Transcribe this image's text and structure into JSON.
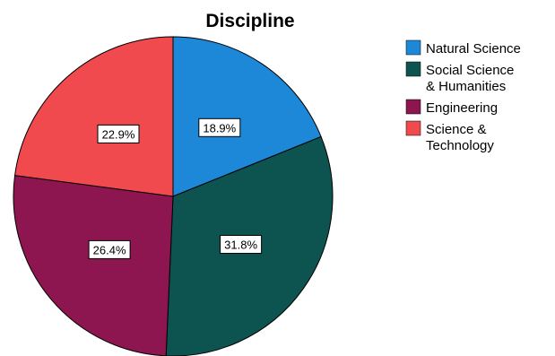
{
  "chart_data": {
    "type": "pie",
    "title": "Discipline",
    "categories": [
      [
        "Natural Science"
      ],
      [
        "Social Science",
        "& Humanities"
      ],
      [
        "Engineering"
      ],
      [
        "Science &",
        "Technology"
      ]
    ],
    "values": [
      18.9,
      31.8,
      26.4,
      22.9
    ],
    "data_labels": [
      "18.9%",
      "31.8%",
      "26.4%",
      "22.9%"
    ],
    "colors": [
      "#1E88D8",
      "#0D5350",
      "#8E1650",
      "#F04A4E"
    ],
    "start_angle_deg": 0,
    "direction": "clockwise",
    "legend_position": "right"
  }
}
